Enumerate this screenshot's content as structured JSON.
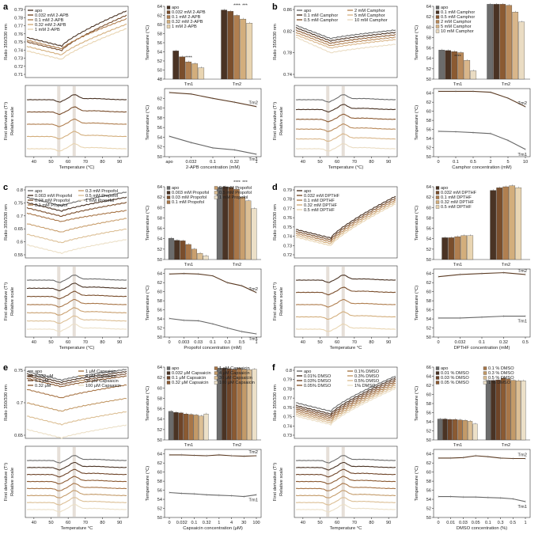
{
  "panels": [
    {
      "label": "a",
      "ratio_ylabel": "Ratio 350/330 nm",
      "deriv_ylabel": [
        "First derivative (T¹)",
        "Relative scale"
      ],
      "temp_xlabel": "Temperature (°C)",
      "bar_ylabel": "Temperature (°C)",
      "line_ylabel": "Temperature (°C)",
      "line_xlabel": "2-APB concentration (mM)",
      "ratio_ticks": [
        "0.79",
        "0.78",
        "0.77",
        "0.76",
        "0.75",
        "0.74",
        "0.73",
        "0.72",
        "0.71"
      ],
      "temp_ticks": [
        "40",
        "50",
        "60",
        "70",
        "80",
        "90"
      ],
      "bar_ticks": [
        "64",
        "62",
        "60",
        "58",
        "56",
        "54",
        "52",
        "50",
        "48"
      ],
      "bar_ylim": [
        48,
        64
      ],
      "line_ticks": [
        "62",
        "60",
        "58",
        "56",
        "54",
        "52",
        "50"
      ],
      "line_ylim": [
        50,
        64
      ],
      "line_xticks": [
        "apo",
        "0.032",
        "0.1",
        "0.32",
        "1"
      ],
      "bar_groups": [
        "Tm1",
        "Tm2"
      ],
      "series": [
        {
          "name": "apo",
          "color": "#4a3324"
        },
        {
          "name": "0.032 mM 2-APB",
          "color": "#7a4e2c"
        },
        {
          "name": "0.1 mM 2-APB",
          "color": "#b07f50"
        },
        {
          "name": "0.32 mM 2-APB",
          "color": "#d3ae7c"
        },
        {
          "name": "1 mM 2-APB",
          "color": "#e9d5b2"
        }
      ],
      "annotations": [
        "****",
        "****",
        "***"
      ],
      "tm1": [
        54.2,
        52.9,
        51.8,
        51.4,
        50.5
      ],
      "tm2": [
        63.2,
        62.9,
        62.0,
        61.2,
        60.3
      ],
      "line_labels": [
        "Tm2",
        "Tm1"
      ],
      "ratio_range": [
        0.71,
        0.79
      ],
      "ratio_start": [
        0.755,
        0.75,
        0.752,
        0.745,
        0.74
      ],
      "ratio_end": [
        0.785,
        0.78,
        0.776,
        0.77,
        0.765
      ]
    },
    {
      "label": "b",
      "ratio_ylabel": "Ratio 350/330 nm",
      "deriv_ylabel": [
        "First derivative (T¹)",
        "Relative scale"
      ],
      "temp_xlabel": "Temperature (°C)",
      "bar_ylabel": "Temperature (°C)",
      "line_ylabel": "Temperature (°C)",
      "line_xlabel": "Camphor concentration (mM)",
      "ratio_ticks": [
        "0.86",
        "0.82",
        "0.78",
        "0.74"
      ],
      "temp_ticks": [
        "40",
        "50",
        "60",
        "70",
        "80",
        "90"
      ],
      "bar_ticks": [
        "64",
        "62",
        "60",
        "58",
        "56",
        "54",
        "52",
        "50"
      ],
      "bar_ylim": [
        50,
        64
      ],
      "line_ticks": [
        "64",
        "62",
        "60",
        "58",
        "56",
        "54",
        "52",
        "50"
      ],
      "line_ylim": [
        50,
        65
      ],
      "line_xticks": [
        "0",
        "0.1",
        "0.5",
        "2",
        "5",
        "10"
      ],
      "bar_groups": [
        "Tm1",
        "Tm2"
      ],
      "series": [
        {
          "name": "apo",
          "color": "#6c6c6c"
        },
        {
          "name": "0.1 mM Camphor",
          "color": "#4a3324"
        },
        {
          "name": "0.5 mM Camphor",
          "color": "#8b5a32"
        },
        {
          "name": "2 mM Camphor",
          "color": "#b98a5b"
        },
        {
          "name": "5 mM Camphor",
          "color": "#d9b68a"
        },
        {
          "name": "10 mM Camphor",
          "color": "#eadcc3"
        }
      ],
      "annotations": [
        "****",
        "****",
        "****"
      ],
      "tm1": [
        55.6,
        55.5,
        55.3,
        55.1,
        53.6,
        51.6
      ],
      "tm2": [
        64.4,
        64.4,
        64.4,
        64.2,
        62.9,
        61.0
      ],
      "line_labels": [
        "Tm2",
        "Tm1"
      ],
      "ratio_range": [
        0.73,
        0.88
      ],
      "ratio_start": [
        0.84,
        0.835,
        0.83,
        0.825,
        0.82,
        0.815
      ],
      "ratio_end": [
        0.83,
        0.825,
        0.82,
        0.815,
        0.81,
        0.8
      ]
    },
    {
      "label": "c",
      "ratio_ylabel": "Ratio 350/330 nm",
      "deriv_ylabel": [
        "First derivative (T¹)",
        "Relative scale"
      ],
      "temp_xlabel": "Temperature (°C)",
      "bar_ylabel": "Temperature (°C)",
      "line_ylabel": "Temperature (°C)",
      "line_xlabel": "Propofol concentration (mM)",
      "ratio_ticks": [
        "0.8",
        "0.75",
        "0.7",
        "0.65",
        "0.6",
        "0.55"
      ],
      "temp_ticks": [
        "40",
        "50",
        "60",
        "70",
        "80",
        "90"
      ],
      "bar_ticks": [
        "64",
        "62",
        "60",
        "58",
        "56",
        "54",
        "52",
        "50"
      ],
      "bar_ylim": [
        50,
        64
      ],
      "line_ticks": [
        "64",
        "62",
        "60",
        "58",
        "56",
        "54",
        "52",
        "50"
      ],
      "line_ylim": [
        50,
        65
      ],
      "line_xticks": [
        "0",
        "0.003",
        "0.03",
        "0.1",
        "0.3",
        "0.5",
        "1"
      ],
      "bar_groups": [
        "Tm1",
        "Tm2"
      ],
      "series": [
        {
          "name": "apo",
          "color": "#6c6c6c"
        },
        {
          "name": "0.003 mM Propofol",
          "color": "#4a3324"
        },
        {
          "name": "0.03 mM Propofol",
          "color": "#7a4e2c"
        },
        {
          "name": "0.1 mM Propofol",
          "color": "#a87648"
        },
        {
          "name": "0.3 mM Propofol",
          "color": "#c99f6e"
        },
        {
          "name": "0.5 mM Propofol",
          "color": "#dcbf95"
        },
        {
          "name": "1 mM Propofol",
          "color": "#ece0c8"
        }
      ],
      "annotations": [
        "****",
        "***"
      ],
      "tm1": [
        54.1,
        53.7,
        53.6,
        52.9,
        52.0,
        51.2,
        50.7
      ],
      "tm2": [
        63.9,
        64.0,
        63.9,
        63.5,
        62.0,
        61.3,
        59.8
      ],
      "line_labels": [
        "Tm2",
        "Tm1"
      ],
      "ratio_range": [
        0.55,
        0.82
      ],
      "ratio_start": [
        0.78,
        0.76,
        0.74,
        0.72,
        0.68,
        0.64,
        0.6
      ],
      "ratio_end": [
        0.8,
        0.78,
        0.76,
        0.73,
        0.7,
        0.66,
        0.62
      ]
    },
    {
      "label": "d",
      "ratio_ylabel": "Ratio 350/330 nm",
      "deriv_ylabel": [
        "First derivative (T¹)",
        "Relative scale"
      ],
      "temp_xlabel": "Temperature °C",
      "bar_ylabel": "Temperature (°C)",
      "line_ylabel": "Temperature (°C)",
      "line_xlabel": "DPTHF concentration (mM)",
      "ratio_ticks": [
        "0.79",
        "0.78",
        "0.77",
        "0.76",
        "0.75",
        "0.74",
        "0.73",
        "0.72"
      ],
      "temp_ticks": [
        "40",
        "50",
        "60",
        "70",
        "80",
        "90"
      ],
      "bar_ticks": [
        "64",
        "62",
        "60",
        "58",
        "56",
        "54",
        "52",
        "50"
      ],
      "bar_ylim": [
        50,
        64
      ],
      "line_ticks": [
        "64",
        "62",
        "60",
        "58",
        "56",
        "54",
        "52",
        "50"
      ],
      "line_ylim": [
        50,
        65
      ],
      "line_xticks": [
        "0",
        "0.032",
        "0.1",
        "0.32",
        "0.5"
      ],
      "bar_groups": [
        "Tm1",
        "Tm2"
      ],
      "series": [
        {
          "name": "apo",
          "color": "#4a3324"
        },
        {
          "name": "0.032 mM DPTHF",
          "color": "#7a4e2c"
        },
        {
          "name": "0.1 mM DPTHF",
          "color": "#b07f50"
        },
        {
          "name": "0.32 mM DPTHF",
          "color": "#d3ae7c"
        },
        {
          "name": "0.5 mM DPTHF",
          "color": "#e9d5b2"
        }
      ],
      "annotations": [],
      "tm1": [
        54.2,
        54.2,
        54.4,
        54.6,
        54.6
      ],
      "tm2": [
        63.3,
        63.8,
        64.0,
        64.2,
        63.8
      ],
      "line_labels": [
        "Tm2",
        "Tm1"
      ],
      "ratio_range": [
        0.72,
        0.795
      ],
      "ratio_start": [
        0.75,
        0.748,
        0.746,
        0.744,
        0.742
      ],
      "ratio_end": [
        0.785,
        0.783,
        0.781,
        0.779,
        0.777
      ]
    },
    {
      "label": "e",
      "ratio_ylabel": "Ratio 350/330 nm",
      "deriv_ylabel": [
        "First derivative (T¹)",
        "Relative scale"
      ],
      "temp_xlabel": "Temperature °C",
      "bar_ylabel": "Temperature (°C)",
      "line_ylabel": "Temperature (°C)",
      "line_xlabel": "Capsaicin concentration (μM)",
      "ratio_ticks": [
        "0.75",
        "0.7",
        "0.65"
      ],
      "temp_ticks": [
        "40",
        "50",
        "60",
        "70",
        "80",
        "90"
      ],
      "bar_ticks": [
        "64",
        "62",
        "60",
        "58",
        "56",
        "54",
        "52",
        "50"
      ],
      "bar_ylim": [
        50,
        64
      ],
      "line_ticks": [
        "64",
        "62",
        "60",
        "58",
        "56",
        "54",
        "52",
        "50"
      ],
      "line_ylim": [
        50,
        65
      ],
      "line_xticks": [
        "0",
        "0.032",
        "0.1",
        "0.32",
        "1",
        "4",
        "30",
        "100"
      ],
      "bar_groups": [
        "Tm1",
        "Tm2"
      ],
      "series": [
        {
          "name": "apo",
          "color": "#6c6c6c"
        },
        {
          "name": "0.032 μM",
          "color": "#4a3324"
        },
        {
          "name": "0.1 μM",
          "color": "#6e4428"
        },
        {
          "name": "0.32 μM",
          "color": "#8b5a32"
        },
        {
          "name": "1 μM Capsaicin",
          "color": "#a87648"
        },
        {
          "name": "4 μM Capsaicin",
          "color": "#c39a68"
        },
        {
          "name": "30 μM Capsaicin",
          "color": "#dcbf95"
        },
        {
          "name": "100 μM Capsaicin",
          "color": "#ece0c8"
        }
      ],
      "bar_legend": [
        "apo",
        "0.032 μM Capsaicin",
        "0.1 μM Capsaicin",
        "0.32 μM Capsaicin",
        "1 μM Capsaicin",
        "4 μM Capsaicin",
        "30 μM Capsaicin",
        "100 μM Capsaicin"
      ],
      "annotations": [],
      "tm1": [
        55.5,
        55.3,
        55.2,
        55.0,
        54.9,
        54.8,
        54.6,
        55.0
      ],
      "tm2": [
        63.8,
        63.8,
        63.7,
        63.6,
        63.8,
        63.6,
        63.5,
        63.6
      ],
      "line_labels": [
        "Tm2",
        "Tm1"
      ],
      "ratio_range": [
        0.62,
        0.78
      ],
      "ratio_start": [
        0.77,
        0.765,
        0.76,
        0.755,
        0.73,
        0.7,
        0.67,
        0.64
      ],
      "ratio_end": [
        0.775,
        0.77,
        0.765,
        0.76,
        0.74,
        0.71,
        0.68,
        0.65
      ]
    },
    {
      "label": "f",
      "ratio_ylabel": "Ratio 350/330 nm",
      "deriv_ylabel": [
        "First derivative (T¹)",
        "Relative scale"
      ],
      "temp_xlabel": "Temperature °C",
      "bar_ylabel": "Temperature (°C)",
      "line_ylabel": "Temperature (°C)",
      "line_xlabel": "DMSO concentration (%)",
      "ratio_ticks": [
        "0.8",
        "0.79",
        "0.78",
        "0.77",
        "0.76",
        "0.75",
        "0.74",
        "0.73"
      ],
      "temp_ticks": [
        "40",
        "50",
        "60",
        "70",
        "80",
        "90"
      ],
      "bar_ticks": [
        "66",
        "64",
        "62",
        "60",
        "58",
        "56",
        "54",
        "52",
        "50"
      ],
      "bar_ylim": [
        50,
        66
      ],
      "line_ticks": [
        "64",
        "62",
        "60",
        "58",
        "56",
        "54",
        "52",
        "50"
      ],
      "line_ylim": [
        50,
        65
      ],
      "line_xticks": [
        "0",
        "0.01",
        "0.03",
        "0.05",
        "0.1",
        "0.3",
        "0.5",
        "1"
      ],
      "bar_groups": [
        "Tm1",
        "Tm2"
      ],
      "series": [
        {
          "name": "apo",
          "color": "#6c6c6c"
        },
        {
          "name": "0.01% DMSO",
          "color": "#4a3324"
        },
        {
          "name": "0.03% DMSO",
          "color": "#6e4428"
        },
        {
          "name": "0.05% DMSO",
          "color": "#8b5a32"
        },
        {
          "name": "0.1% DMSO",
          "color": "#a87648"
        },
        {
          "name": "0.3% DMSO",
          "color": "#c39a68"
        },
        {
          "name": "0.5% DMSO",
          "color": "#dcbf95"
        },
        {
          "name": "1% DMSO",
          "color": "#ece0c8"
        }
      ],
      "bar_legend": [
        "apo",
        "0.01 % DMSO",
        "0.03 % DMSO",
        "0.05 % DMSO",
        "0.1 % DMSO",
        "0.3 % DMSO",
        "0.5 % DMSO",
        "1 % DMSO"
      ],
      "annotations": [],
      "tm1": [
        54.6,
        54.6,
        54.5,
        54.5,
        54.4,
        54.3,
        54.1,
        53.5
      ],
      "tm2": [
        63.1,
        63.1,
        63.2,
        63.6,
        63.4,
        63.1,
        63.0,
        63.0
      ],
      "line_labels": [
        "Tm2",
        "Tm1"
      ],
      "ratio_range": [
        0.725,
        0.805
      ],
      "ratio_start": [
        0.765,
        0.762,
        0.76,
        0.758,
        0.756,
        0.754,
        0.752,
        0.75
      ],
      "ratio_end": [
        0.795,
        0.793,
        0.791,
        0.789,
        0.787,
        0.785,
        0.783,
        0.781
      ]
    }
  ]
}
